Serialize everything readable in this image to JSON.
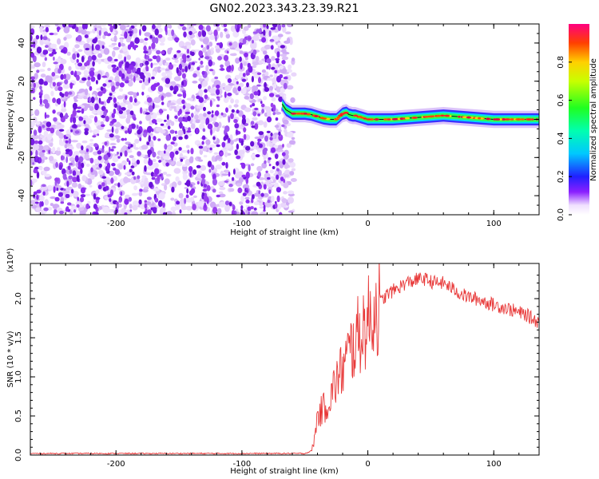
{
  "title": "GN02.2023.343.23.39.R21",
  "colors": {
    "snr_line": "#e83a3a",
    "scatter_purple": "#7a1fe6",
    "scatter_light": "#d8b8f8"
  },
  "chart_data": [
    {
      "type": "heatmap",
      "xlabel": "Height of straight line (km)",
      "ylabel": "Frequency (Hz)",
      "xlim": [
        -268,
        136
      ],
      "ylim": [
        -50,
        50
      ],
      "xticks": [
        -200,
        -100,
        0,
        100
      ],
      "yticks": [
        -40,
        -20,
        0,
        20,
        40
      ],
      "grid": false,
      "noise_region_x": [
        -268,
        -65
      ],
      "ridge": {
        "x": [
          -68,
          -65,
          -60,
          -55,
          -50,
          -45,
          -40,
          -35,
          -30,
          -25,
          -20,
          -17,
          -15,
          -12,
          -10,
          -5,
          0,
          10,
          20,
          30,
          40,
          50,
          60,
          70,
          80,
          90,
          100,
          110,
          120,
          136
        ],
        "y": [
          8,
          5,
          3,
          3,
          3,
          2.5,
          1.5,
          0.5,
          0,
          0,
          3,
          3.5,
          2.5,
          2,
          2,
          1,
          0,
          0,
          0,
          0.5,
          1,
          1.5,
          2,
          1.5,
          1,
          0.5,
          0,
          0,
          0,
          0
        ]
      },
      "colorbar": {
        "label": "Normalized spectral amplitude",
        "range": [
          0,
          1
        ],
        "ticks": [
          0.0,
          0.2,
          0.4,
          0.6,
          0.8
        ]
      }
    },
    {
      "type": "line",
      "xlabel": "Height of straight line (km)",
      "ylabel": "SNR (10 * v/v)",
      "multiplier": "(x10⁴)",
      "xlim": [
        -268,
        136
      ],
      "ylim": [
        0,
        2.45
      ],
      "xticks": [
        -200,
        -100,
        0,
        100
      ],
      "yticks": [
        0.0,
        0.5,
        1.0,
        1.5,
        2.0
      ],
      "grid": false,
      "series": [
        {
          "x": [
            -268,
            -150,
            -50,
            -45,
            -43,
            -40,
            -35,
            -30,
            -25,
            -20,
            -15,
            -10,
            -5,
            0,
            5,
            10,
            15,
            20,
            25,
            30,
            35,
            40,
            45,
            50,
            55,
            60,
            65,
            70,
            75,
            80,
            85,
            90,
            95,
            100,
            105,
            110,
            115,
            120,
            125,
            130,
            136
          ],
          "values": [
            0.02,
            0.02,
            0.02,
            0.05,
            0.15,
            0.5,
            0.6,
            0.72,
            0.95,
            1.1,
            1.3,
            1.45,
            1.6,
            1.7,
            1.85,
            1.95,
            2.05,
            2.1,
            2.15,
            2.2,
            2.22,
            2.25,
            2.25,
            2.22,
            2.2,
            2.2,
            2.15,
            2.1,
            2.05,
            2.02,
            2.0,
            1.98,
            1.95,
            1.92,
            1.9,
            1.88,
            1.85,
            1.82,
            1.8,
            1.75,
            1.7
          ]
        }
      ]
    }
  ]
}
